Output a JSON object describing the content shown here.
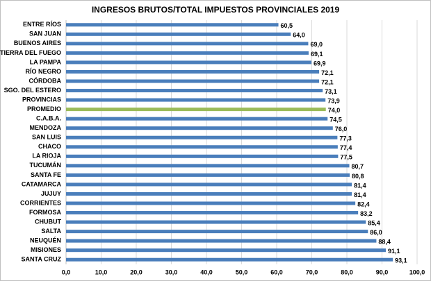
{
  "chart_data": {
    "type": "bar",
    "orientation": "horizontal",
    "title": "INGRESOS BRUTOS/TOTAL  IMPUESTOS PROVINCIALES 2019",
    "categories": [
      "ENTRE RÍOS",
      "SAN JUAN",
      "BUENOS AIRES",
      "TIERRA DEL FUEGO",
      "LA PAMPA",
      "RÍO NEGRO",
      "CÓRDOBA",
      "SGO. DEL ESTERO",
      "PROVINCIAS",
      "PROMEDIO",
      "C.A.B.A.",
      "MENDOZA",
      "SAN LUIS",
      "CHACO",
      "LA RIOJA",
      "TUCUMÁN",
      "SANTA FE",
      "CATAMARCA",
      "JUJUY",
      "CORRIENTES",
      "FORMOSA",
      "CHUBUT",
      "SALTA",
      "NEUQUÉN",
      "MISIONES",
      "SANTA CRUZ"
    ],
    "values": [
      60.5,
      64.0,
      69.0,
      69.1,
      69.9,
      72.1,
      72.1,
      73.1,
      73.9,
      74.0,
      74.5,
      76.0,
      77.3,
      77.4,
      77.5,
      80.7,
      80.8,
      81.4,
      81.4,
      82.4,
      83.2,
      85.4,
      86.0,
      88.4,
      91.1,
      93.1
    ],
    "value_labels": [
      "60,5",
      "64,0",
      "69,0",
      "69,1",
      "69,9",
      "72,1",
      "72,1",
      "73,1",
      "73,9",
      "74,0",
      "74,5",
      "76,0",
      "77,3",
      "77,4",
      "77,5",
      "80,7",
      "80,8",
      "81,4",
      "81,4",
      "82,4",
      "83,2",
      "85,4",
      "86,0",
      "88,4",
      "91,1",
      "93,1"
    ],
    "color": "#4a7ebb",
    "highlight": {
      "category": "PROMEDIO",
      "color": "#9bbb59"
    },
    "xlim": [
      0,
      100
    ],
    "xticks": [
      {
        "value": 0,
        "label": "0,0"
      },
      {
        "value": 10,
        "label": "10,0"
      },
      {
        "value": 20,
        "label": "20,0"
      },
      {
        "value": 30,
        "label": "30,0"
      },
      {
        "value": 40,
        "label": "40,0"
      },
      {
        "value": 50,
        "label": "50,0"
      },
      {
        "value": 60,
        "label": "60,0"
      },
      {
        "value": 70,
        "label": "70,0"
      },
      {
        "value": 80,
        "label": "80,0"
      },
      {
        "value": 90,
        "label": "90,0"
      },
      {
        "value": 100,
        "label": "100,0"
      }
    ],
    "grid": true
  }
}
